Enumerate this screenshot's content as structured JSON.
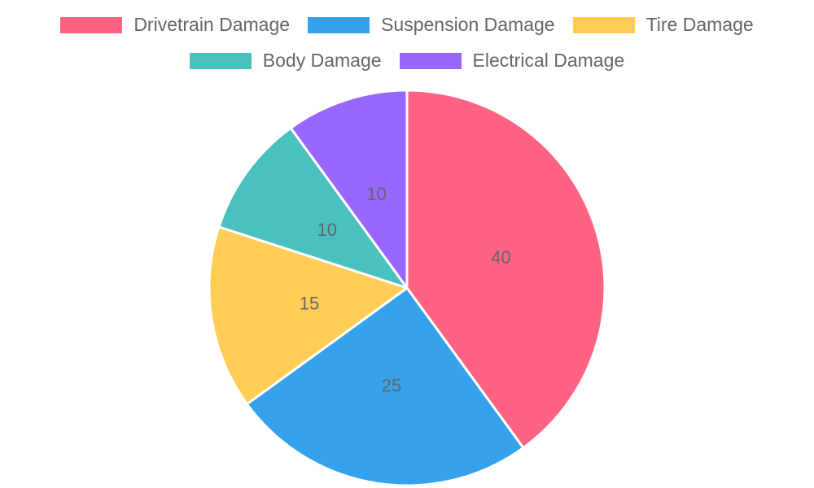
{
  "chart_data": {
    "type": "pie",
    "categories": [
      "Drivetrain Damage",
      "Suspension Damage",
      "Tire Damage",
      "Body Damage",
      "Electrical Damage"
    ],
    "values": [
      40,
      25,
      15,
      10,
      10
    ],
    "colors": [
      "#ff6384",
      "#36a2eb",
      "#ffcd56",
      "#4bc0c0",
      "#9966ff"
    ],
    "data_labels": [
      "40",
      "25",
      "15",
      "10",
      "10"
    ],
    "legend_position": "top",
    "title": ""
  }
}
